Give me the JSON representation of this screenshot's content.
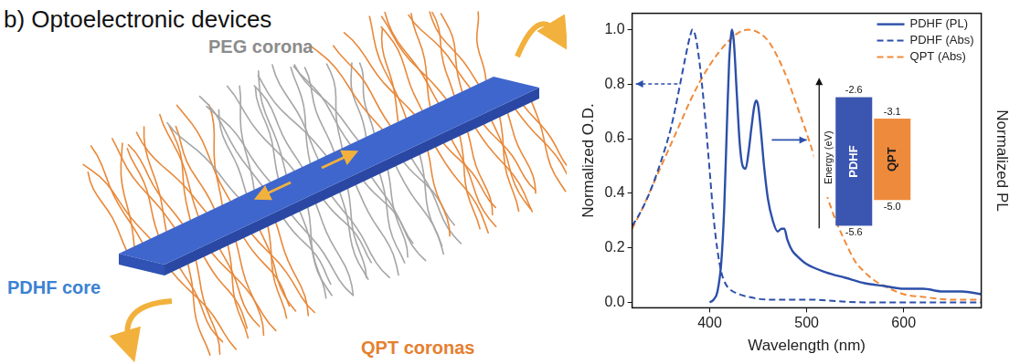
{
  "panel_title": "b) Optoelectronic devices",
  "diagram": {
    "labels": [
      {
        "text": "PEG corona",
        "color": "#8c8c8c"
      },
      {
        "text": "PDHF core",
        "color": "#3c82d2"
      },
      {
        "text": "QPT coronas",
        "color": "#e5802f"
      }
    ]
  },
  "chart_data": {
    "type": "line",
    "x_label": "Wavelength (nm)",
    "y_label": "Normalized O.D.",
    "y2_label": "Normalized PL",
    "xlim": [
      320,
      680
    ],
    "xticks": [
      400,
      500,
      600
    ],
    "ylim": [
      -0.02,
      1.06
    ],
    "yticks": [
      {
        "value": 0,
        "label": "0.0"
      },
      0.2,
      0.4,
      0.6,
      0.8,
      {
        "value": 1,
        "label": "1.0"
      }
    ],
    "y2lim": [
      -0.02,
      1.06
    ],
    "grid": false,
    "legend": "upper right",
    "series": [
      {
        "name": "PDHF (PL)",
        "color": "#2c4fa9",
        "line_style": "solid",
        "axis": "y2",
        "x": [
          400,
          404,
          408,
          412,
          415,
          418,
          420,
          422,
          423,
          425,
          428,
          431,
          434,
          437,
          440,
          443,
          446,
          448,
          450,
          453,
          456,
          460,
          465,
          470,
          474,
          477,
          480,
          485,
          490,
          500,
          520,
          540,
          560,
          580,
          600,
          620,
          640,
          660,
          680
        ],
        "values": [
          0.0,
          0.01,
          0.04,
          0.15,
          0.35,
          0.68,
          0.88,
          0.98,
          1.0,
          0.95,
          0.76,
          0.58,
          0.5,
          0.49,
          0.55,
          0.64,
          0.72,
          0.74,
          0.72,
          0.62,
          0.5,
          0.38,
          0.3,
          0.26,
          0.27,
          0.27,
          0.23,
          0.19,
          0.17,
          0.14,
          0.11,
          0.09,
          0.07,
          0.06,
          0.05,
          0.05,
          0.04,
          0.04,
          0.03
        ]
      },
      {
        "name": "PDHF (Abs)",
        "color": "#2c4fa9",
        "line_style": "dashed",
        "x": [
          320,
          330,
          340,
          350,
          360,
          365,
          370,
          375,
          380,
          382,
          385,
          388,
          392,
          396,
          400,
          404,
          408,
          412,
          416,
          420,
          430,
          440,
          460,
          500,
          560,
          620,
          680
        ],
        "values": [
          0.28,
          0.34,
          0.42,
          0.52,
          0.64,
          0.72,
          0.81,
          0.9,
          0.98,
          1.0,
          0.98,
          0.92,
          0.8,
          0.65,
          0.48,
          0.31,
          0.19,
          0.11,
          0.07,
          0.05,
          0.03,
          0.02,
          0.01,
          0.01,
          0.0,
          0.0,
          0.0
        ]
      },
      {
        "name": "QPT (Abs)",
        "color": "#f08a3a",
        "line_style": "dashed",
        "x": [
          320,
          330,
          340,
          350,
          360,
          370,
          380,
          390,
          400,
          410,
          420,
          430,
          440,
          450,
          460,
          470,
          480,
          490,
          500,
          510,
          520,
          530,
          540,
          550,
          560,
          570,
          580,
          600,
          620,
          650,
          680
        ],
        "values": [
          0.27,
          0.34,
          0.42,
          0.5,
          0.58,
          0.66,
          0.74,
          0.81,
          0.87,
          0.92,
          0.96,
          0.99,
          1.0,
          0.99,
          0.96,
          0.9,
          0.82,
          0.72,
          0.62,
          0.51,
          0.4,
          0.3,
          0.22,
          0.15,
          0.11,
          0.08,
          0.06,
          0.03,
          0.02,
          0.01,
          0.01
        ]
      }
    ],
    "inset": {
      "axis_label": "Energy (eV)",
      "levels": [
        {
          "name": "PDHF",
          "color": "#3b56b0",
          "top": -2.6,
          "bottom": -5.6
        },
        {
          "name": "QPT",
          "color": "#ee8a3c",
          "top": -3.1,
          "bottom": {
            "value": -5.0,
            "label": "-5.0"
          }
        }
      ]
    }
  }
}
